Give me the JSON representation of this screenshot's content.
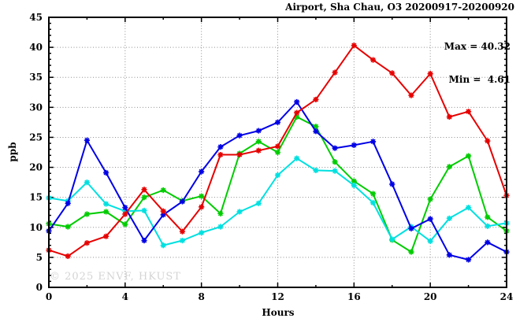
{
  "chart": {
    "title": "Airport, Sha Chau, O3 20200917-20200920",
    "annotation": {
      "max_label": "Max = 40.32",
      "min_label": "Min =  4.61"
    },
    "ylabel": "ppb",
    "xlabel": "Hours",
    "watermark": "© 2025 ENVF, HKUST"
  },
  "chart_data": {
    "type": "line",
    "title": "Airport, Sha Chau, O3 20200917-20200920",
    "xlabel": "Hours",
    "ylabel": "ppb",
    "xlim": [
      0,
      24
    ],
    "ylim": [
      0,
      45
    ],
    "xticks": [
      0,
      4,
      8,
      12,
      16,
      20,
      24
    ],
    "yticks": [
      0,
      5,
      10,
      15,
      20,
      25,
      30,
      35,
      40,
      45
    ],
    "x_minor_step": 2,
    "y_minor_step": 1,
    "grid": true,
    "legend_position": "none",
    "max_value": 40.32,
    "min_value": 4.61,
    "x": [
      0,
      1,
      2,
      3,
      4,
      5,
      6,
      7,
      8,
      9,
      10,
      11,
      12,
      13,
      14,
      15,
      16,
      17,
      18,
      19,
      20,
      21,
      22,
      23,
      24
    ],
    "series": [
      {
        "name": "green-line",
        "color": "#00cc00",
        "values": [
          10.6,
          10.1,
          12.2,
          12.6,
          10.5,
          15.0,
          16.2,
          14.4,
          15.2,
          12.3,
          22.3,
          24.3,
          22.5,
          28.4,
          26.8,
          20.9,
          17.7,
          15.6,
          7.9,
          5.9,
          14.7,
          20.1,
          21.9,
          11.7,
          9.4
        ]
      },
      {
        "name": "cyan-line",
        "color": "#00e0e0",
        "values": [
          14.9,
          14.4,
          17.5,
          13.9,
          12.7,
          12.8,
          7.0,
          7.8,
          9.1,
          10.1,
          12.6,
          14.0,
          18.7,
          21.5,
          19.5,
          19.4,
          17.0,
          14.1,
          8.0,
          10.1,
          7.7,
          11.5,
          13.3,
          10.2,
          10.7
        ]
      },
      {
        "name": "blue-line",
        "color": "#0000e6",
        "values": [
          9.4,
          14.0,
          24.5,
          19.1,
          13.3,
          7.8,
          12.1,
          14.3,
          19.3,
          23.4,
          25.3,
          26.1,
          27.5,
          30.9,
          26.0,
          23.2,
          23.7,
          24.3,
          17.2,
          9.8,
          11.4,
          5.4,
          4.61,
          7.5,
          5.9
        ]
      },
      {
        "name": "red-line",
        "color": "#e60000",
        "values": [
          6.2,
          5.2,
          7.4,
          8.5,
          12.2,
          16.3,
          12.7,
          9.3,
          13.4,
          22.1,
          22.1,
          22.8,
          23.5,
          29.1,
          31.3,
          35.8,
          40.32,
          37.9,
          35.7,
          32.0,
          35.6,
          28.4,
          29.3,
          24.4,
          15.3
        ]
      }
    ]
  }
}
